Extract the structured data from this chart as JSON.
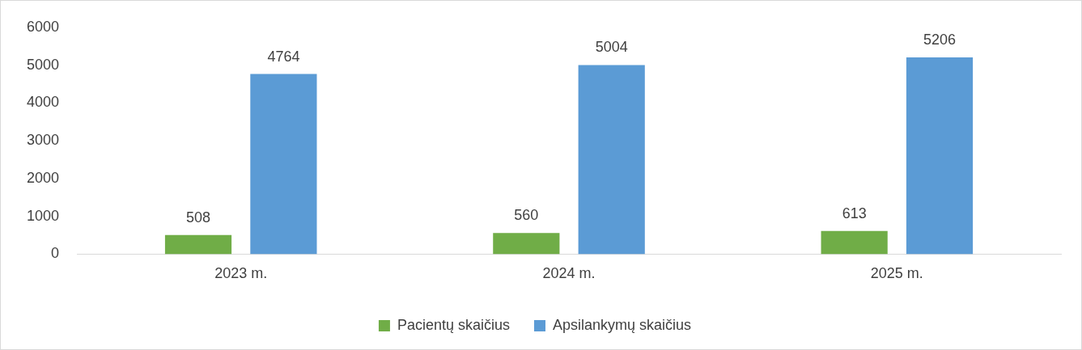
{
  "chart_data": {
    "type": "bar",
    "categories": [
      "2023 m.",
      "2024 m.",
      "2025 m."
    ],
    "series": [
      {
        "name": "Pacientų skaičius",
        "color": "#70ad47",
        "values": [
          508,
          560,
          613
        ]
      },
      {
        "name": "Apsilankymų skaičius",
        "color": "#5b9bd5",
        "values": [
          4764,
          5004,
          5206
        ]
      }
    ],
    "ylim": [
      0,
      6000
    ],
    "yticks": [
      0,
      1000,
      2000,
      3000,
      4000,
      5000,
      6000
    ],
    "grid": false,
    "legend": "bottom",
    "data_labels": true
  }
}
